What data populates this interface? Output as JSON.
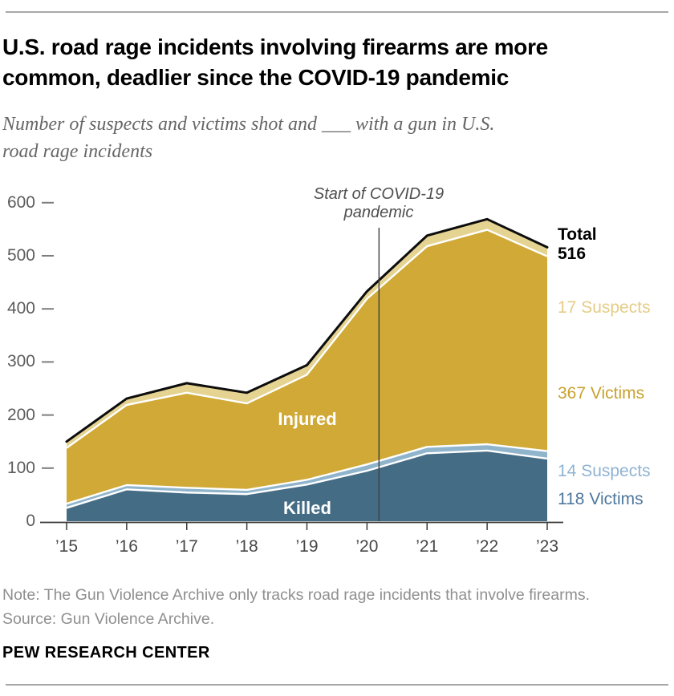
{
  "header": {
    "title_line1": "U.S. road rage incidents involving firearms are more",
    "title_line2": "common, deadlier since the COVID-19 pandemic",
    "subtitle_line1": "Number of suspects and victims shot and ___ with a gun in U.S.",
    "subtitle_line2": "road rage incidents"
  },
  "chart_data": {
    "type": "area",
    "stacked": true,
    "x": [
      2015,
      2016,
      2017,
      2018,
      2019,
      2020,
      2021,
      2022,
      2023
    ],
    "x_tick_labels": [
      "’15",
      "’16",
      "’17",
      "’18",
      "’19",
      "’20",
      "’21",
      "’22",
      "’23"
    ],
    "y_ticks": [
      0,
      100,
      200,
      300,
      400,
      500,
      600
    ],
    "ylim": [
      0,
      620
    ],
    "grid": false,
    "legend_position": "right-edge-labels",
    "series": [
      {
        "name": "Killed victims",
        "color": "#456C85",
        "values": [
          25,
          60,
          54,
          51,
          69,
          95,
          128,
          133,
          118
        ]
      },
      {
        "name": "Killed suspects",
        "color": "#8FB4CC",
        "values": [
          8,
          8,
          9,
          8,
          9,
          12,
          12,
          12,
          14
        ]
      },
      {
        "name": "Injured victims",
        "color": "#D0A936",
        "values": [
          105,
          151,
          179,
          163,
          198,
          312,
          378,
          404,
          367
        ]
      },
      {
        "name": "Injured suspects",
        "color": "#E5D391",
        "values": [
          12,
          12,
          18,
          20,
          18,
          14,
          20,
          20,
          17
        ]
      }
    ],
    "totals": [
      150,
      231,
      260,
      242,
      294,
      433,
      538,
      569,
      516
    ],
    "total_line": {
      "color": "#0d0d0d"
    },
    "separator_line_color": "#ffffff",
    "annotations": {
      "covid_line_year": 2020.2,
      "covid_label_line1": "Start of COVID-19",
      "covid_label_line2": "pandemic"
    },
    "area_labels": {
      "injured": "Injured",
      "killed": "Killed",
      "color": "#ffffff"
    },
    "right_labels": {
      "total_title": "Total",
      "total_value": "516",
      "total_color": "#000000",
      "injured_suspects": "17 Suspects",
      "injured_suspects_color": "#E5CD87",
      "injured_victims": "367 Victims",
      "injured_victims_color": "#C9A22F",
      "killed_suspects": "14 Suspects",
      "killed_suspects_color": "#8FB3D3",
      "killed_victims": "118 Victims",
      "killed_victims_color": "#4E779D"
    }
  },
  "footer": {
    "note": "Note: The Gun Violence Archive only tracks road rage incidents that involve firearms.",
    "source": "Source: Gun Violence Archive.",
    "brand": "PEW RESEARCH CENTER"
  }
}
